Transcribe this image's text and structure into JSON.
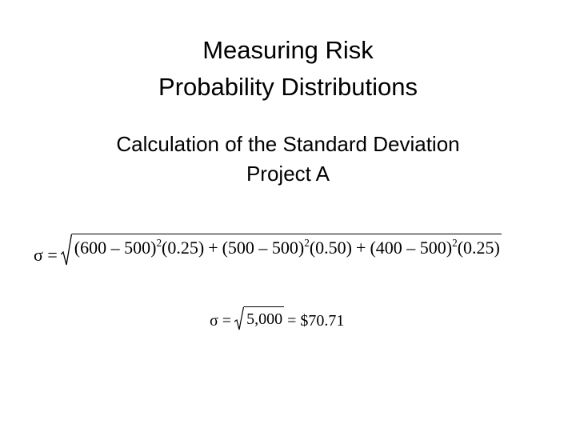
{
  "title": [
    "Measuring Risk",
    "Probability Distributions"
  ],
  "subtitle": [
    "Calculation of the Standard Deviation",
    "Project A"
  ],
  "formula1": {
    "lhs": "σ =",
    "operator": "+",
    "terms": [
      {
        "base": "(600 – 500)",
        "exp": "2",
        "weight": "(0.25)"
      },
      {
        "base": "(500 – 500)",
        "exp": "2",
        "weight": "(0.50)"
      },
      {
        "base": "(400 – 500)",
        "exp": "2",
        "weight": "(0.25)"
      }
    ]
  },
  "formula2": {
    "lhs": "σ =",
    "radicand": "5,000",
    "result": "= $70.71"
  }
}
